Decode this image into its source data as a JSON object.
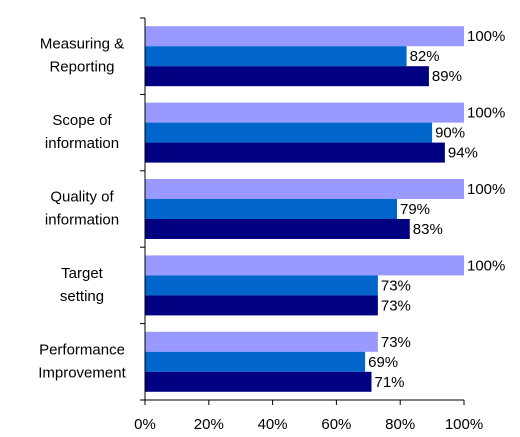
{
  "chart_data": {
    "type": "bar",
    "orientation": "horizontal",
    "categories": [
      [
        "Measuring &",
        "Reporting"
      ],
      [
        "Scope of",
        "information"
      ],
      [
        "Quality of",
        "information"
      ],
      [
        "Target",
        "setting"
      ],
      [
        "Performance",
        "Improvement"
      ]
    ],
    "series": [
      {
        "color": "#9999ff",
        "values": [
          100,
          100,
          100,
          100,
          73
        ],
        "value_labels": [
          "100%",
          "100%",
          "100%",
          "100%",
          "73%"
        ]
      },
      {
        "color": "#0066cc",
        "values": [
          82,
          90,
          79,
          73,
          69
        ],
        "value_labels": [
          "82%",
          "90%",
          "79%",
          "73%",
          "69%"
        ]
      },
      {
        "color": "#000080",
        "values": [
          89,
          94,
          83,
          73,
          71
        ],
        "value_labels": [
          "89%",
          "94%",
          "83%",
          "73%",
          "71%"
        ]
      }
    ],
    "xlim": [
      0,
      100
    ],
    "xticks": [
      {
        "value": 0,
        "label": "0%"
      },
      {
        "value": 20,
        "label": "20%"
      },
      {
        "value": 40,
        "label": "40%"
      },
      {
        "value": 60,
        "label": "60%"
      },
      {
        "value": 80,
        "label": "80%"
      },
      {
        "value": 100,
        "label": "100%"
      }
    ],
    "grid": false
  }
}
